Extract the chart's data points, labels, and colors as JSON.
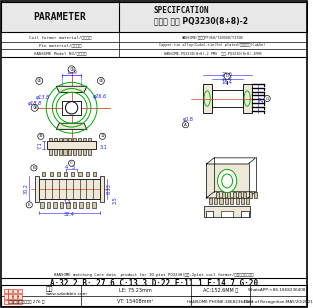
{
  "title": "PARAMETER",
  "spec_title": "SPECIFCATION  品名： 焱升 PQ3230(8+8)-2",
  "rows": [
    [
      "Coil former material/线圈材料",
      "HANSOME(琱升）PF368/T20040/T370B"
    ],
    [
      "Pin material/端子材料",
      "Copper-tin alloy(Cu&n),tin(Sn) plated/铜合金镁铅(Cu&Sn)"
    ],
    [
      "HANSOME Model NO/我方品名",
      "HANSOME-PQ3230(8+8)-2 PMS  琱升-PQ3230(8+8)-2PMS"
    ]
  ],
  "dims_text": "A:32.2 B: 27.6 C:13.3 D:22 E:11.1 F:14.7 G:20",
  "footer_web": "www.szbobbin.com",
  "footer_addr": "东菞市石排下沙大道 276 号",
  "footer_le": "LE: 75.23mm",
  "footer_ac": "AC:152.6MM ㎡",
  "footer_vt": "VT: 15408mm³",
  "footer_phone": "HANSOME PHONE:18682364083",
  "footer_wa": "WhatsAPP:+86-18682364083",
  "footer_date": "Date of Recognition:MAY/20/2021",
  "bg_color": "#ffffff",
  "line_color": "#000000",
  "dim_color": "#1a1aff",
  "green_color": "#00aa00",
  "red_color": "#cc2200",
  "gray_bg": "#e8e8e8",
  "pin_fill": "#d4c8a8",
  "body_fill": "#ede8d8"
}
